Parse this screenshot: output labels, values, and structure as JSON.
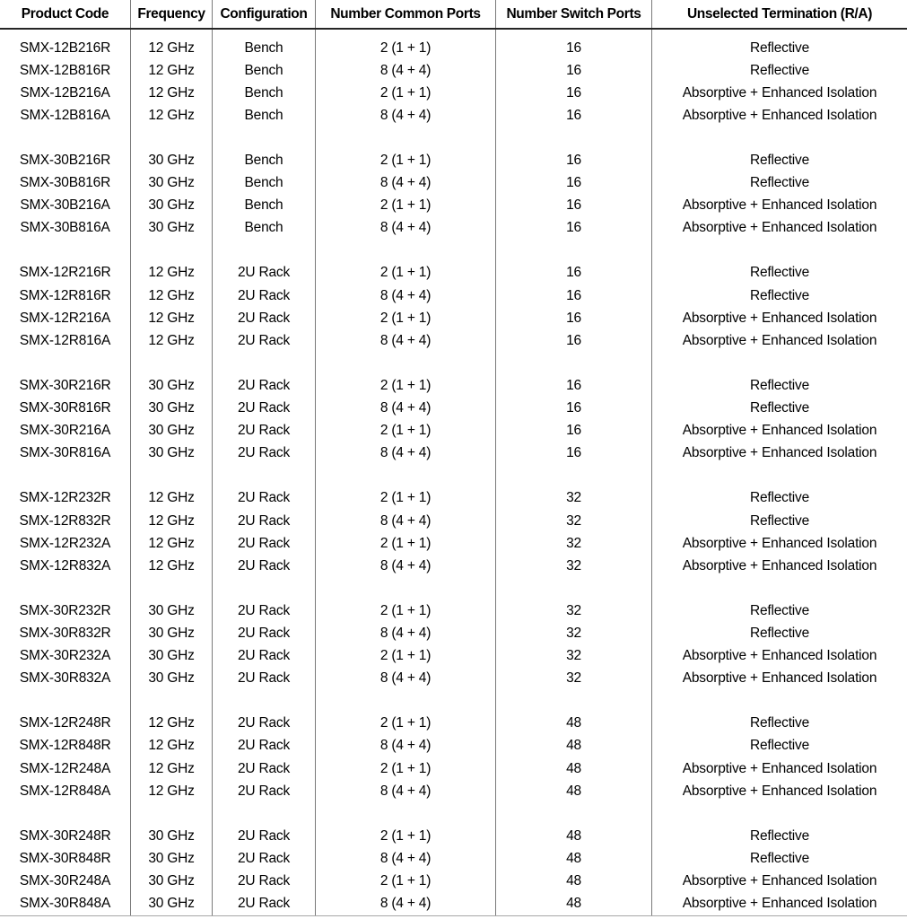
{
  "table": {
    "columns": [
      "Product Code",
      "Frequency",
      "Configuration",
      "Number Common Ports",
      "Number Switch Ports",
      "Unselected Termination (R/A)"
    ],
    "groups": [
      {
        "rows": [
          [
            "SMX-12B216R",
            "12 GHz",
            "Bench",
            "2 (1 + 1)",
            "16",
            "Reflective"
          ],
          [
            "SMX-12B816R",
            "12 GHz",
            "Bench",
            "8 (4 + 4)",
            "16",
            "Reflective"
          ],
          [
            "SMX-12B216A",
            "12 GHz",
            "Bench",
            "2 (1 + 1)",
            "16",
            "Absorptive + Enhanced Isolation"
          ],
          [
            "SMX-12B816A",
            "12 GHz",
            "Bench",
            "8 (4 + 4)",
            "16",
            "Absorptive + Enhanced Isolation"
          ]
        ]
      },
      {
        "rows": [
          [
            "SMX-30B216R",
            "30 GHz",
            "Bench",
            "2 (1 + 1)",
            "16",
            "Reflective"
          ],
          [
            "SMX-30B816R",
            "30 GHz",
            "Bench",
            "8 (4 + 4)",
            "16",
            "Reflective"
          ],
          [
            "SMX-30B216A",
            "30 GHz",
            "Bench",
            "2 (1 + 1)",
            "16",
            "Absorptive + Enhanced Isolation"
          ],
          [
            "SMX-30B816A",
            "30 GHz",
            "Bench",
            "8 (4 + 4)",
            "16",
            "Absorptive + Enhanced Isolation"
          ]
        ]
      },
      {
        "rows": [
          [
            "SMX-12R216R",
            "12 GHz",
            "2U Rack",
            "2 (1 + 1)",
            "16",
            "Reflective"
          ],
          [
            "SMX-12R816R",
            "12 GHz",
            "2U Rack",
            "8 (4 + 4)",
            "16",
            "Reflective"
          ],
          [
            "SMX-12R216A",
            "12 GHz",
            "2U Rack",
            "2 (1 + 1)",
            "16",
            "Absorptive + Enhanced Isolation"
          ],
          [
            "SMX-12R816A",
            "12 GHz",
            "2U Rack",
            "8 (4 + 4)",
            "16",
            "Absorptive + Enhanced Isolation"
          ]
        ]
      },
      {
        "rows": [
          [
            "SMX-30R216R",
            "30 GHz",
            "2U Rack",
            "2 (1 + 1)",
            "16",
            "Reflective"
          ],
          [
            "SMX-30R816R",
            "30 GHz",
            "2U Rack",
            "8 (4 + 4)",
            "16",
            "Reflective"
          ],
          [
            "SMX-30R216A",
            "30 GHz",
            "2U Rack",
            "2 (1 + 1)",
            "16",
            "Absorptive + Enhanced Isolation"
          ],
          [
            "SMX-30R816A",
            "30 GHz",
            "2U Rack",
            "8 (4 + 4)",
            "16",
            "Absorptive + Enhanced Isolation"
          ]
        ]
      },
      {
        "rows": [
          [
            "SMX-12R232R",
            "12 GHz",
            "2U Rack",
            "2 (1 + 1)",
            "32",
            "Reflective"
          ],
          [
            "SMX-12R832R",
            "12 GHz",
            "2U Rack",
            "8 (4 + 4)",
            "32",
            "Reflective"
          ],
          [
            "SMX-12R232A",
            "12 GHz",
            "2U Rack",
            "2 (1 + 1)",
            "32",
            "Absorptive + Enhanced Isolation"
          ],
          [
            "SMX-12R832A",
            "12 GHz",
            "2U Rack",
            "8 (4 + 4)",
            "32",
            "Absorptive + Enhanced Isolation"
          ]
        ]
      },
      {
        "rows": [
          [
            "SMX-30R232R",
            "30 GHz",
            "2U Rack",
            "2 (1 + 1)",
            "32",
            "Reflective"
          ],
          [
            "SMX-30R832R",
            "30 GHz",
            "2U Rack",
            "8 (4 + 4)",
            "32",
            "Reflective"
          ],
          [
            "SMX-30R232A",
            "30 GHz",
            "2U Rack",
            "2 (1 + 1)",
            "32",
            "Absorptive + Enhanced Isolation"
          ],
          [
            "SMX-30R832A",
            "30 GHz",
            "2U Rack",
            "8 (4 + 4)",
            "32",
            "Absorptive + Enhanced Isolation"
          ]
        ]
      },
      {
        "rows": [
          [
            "SMX-12R248R",
            "12 GHz",
            "2U Rack",
            "2 (1 + 1)",
            "48",
            "Reflective"
          ],
          [
            "SMX-12R848R",
            "12 GHz",
            "2U Rack",
            "8 (4 + 4)",
            "48",
            "Reflective"
          ],
          [
            "SMX-12R248A",
            "12 GHz",
            "2U Rack",
            "2 (1 + 1)",
            "48",
            "Absorptive + Enhanced Isolation"
          ],
          [
            "SMX-12R848A",
            "12 GHz",
            "2U Rack",
            "8 (4 + 4)",
            "48",
            "Absorptive + Enhanced Isolation"
          ]
        ]
      },
      {
        "rows": [
          [
            "SMX-30R248R",
            "30 GHz",
            "2U Rack",
            "2 (1 + 1)",
            "48",
            "Reflective"
          ],
          [
            "SMX-30R848R",
            "30 GHz",
            "2U Rack",
            "8 (4 + 4)",
            "48",
            "Reflective"
          ],
          [
            "SMX-30R248A",
            "30 GHz",
            "2U Rack",
            "2 (1 + 1)",
            "48",
            "Absorptive + Enhanced Isolation"
          ],
          [
            "SMX-30R848A",
            "30 GHz",
            "2U Rack",
            "8 (4 + 4)",
            "48",
            "Absorptive + Enhanced Isolation"
          ]
        ]
      }
    ],
    "colors": {
      "text": "#000000",
      "column_separator": "#7a7a7a",
      "header_rule": "#262626",
      "bottom_rule": "#a6a6a6",
      "background": "#ffffff"
    }
  }
}
